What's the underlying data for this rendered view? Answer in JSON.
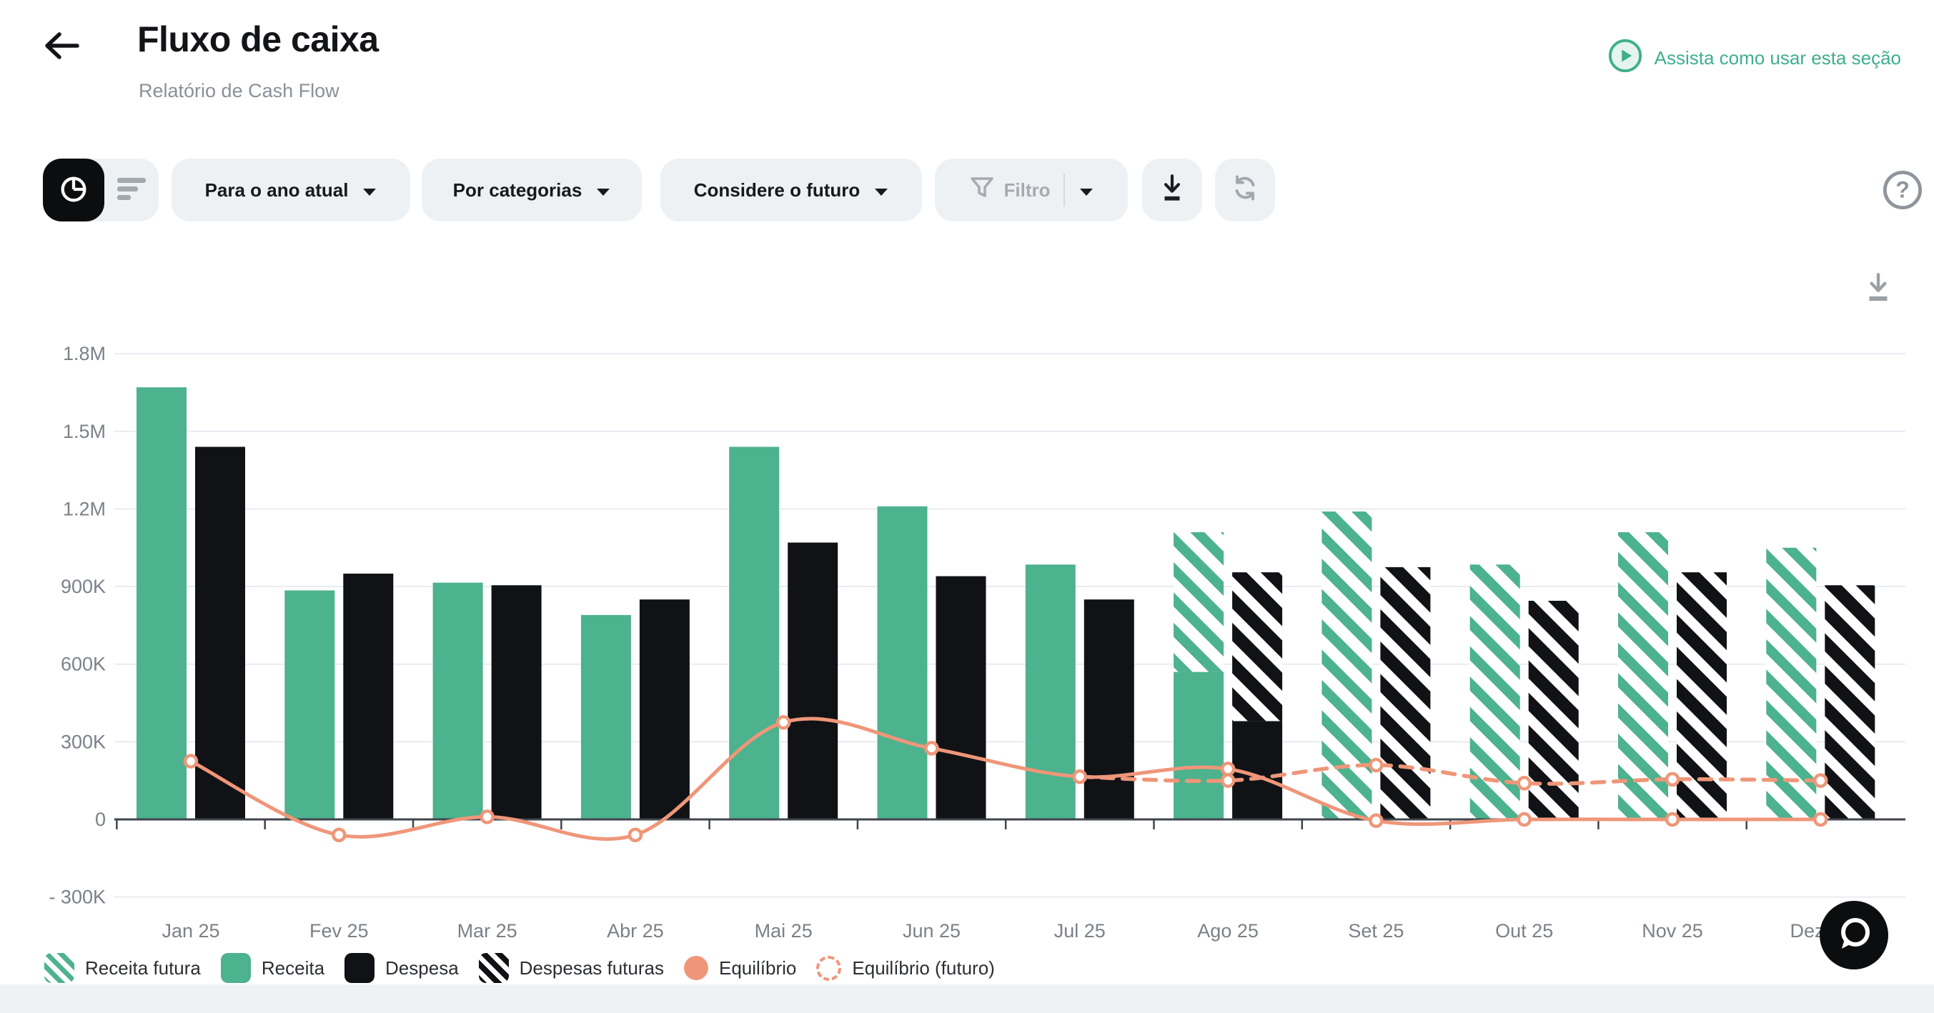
{
  "header": {
    "title": "Fluxo de caixa",
    "subtitle": "Relatório de Cash Flow",
    "watch_link": "Assista como usar esta seção"
  },
  "toolbar": {
    "period_label": "Para o ano atual",
    "category_label": "Por categorias",
    "future_label": "Considere o futuro",
    "filter_label": "Filtro"
  },
  "colors": {
    "revenue_green": "#4db28e",
    "expense_black": "#101215",
    "equilibrium_orange": "#ef9679",
    "link_green": "#3faf8c",
    "pill_gray": "#edf1f4",
    "grid_gray": "#e8ecf2"
  },
  "chart_data": {
    "type": "bar",
    "unit": "thousands of currency (K)",
    "categories": [
      "Jan 25",
      "Fev 25",
      "Mar 25",
      "Abr 25",
      "Mai 25",
      "Jun 25",
      "Jul 25",
      "Ago 25",
      "Set 25",
      "Out 25",
      "Nov 25",
      "Dez 25"
    ],
    "series": [
      {
        "name": "Receita",
        "type": "bar",
        "style": "solid",
        "color": "#4db28e",
        "values": [
          1670,
          885,
          915,
          790,
          1440,
          1210,
          985,
          570,
          0,
          0,
          0,
          0
        ]
      },
      {
        "name": "Receita futura",
        "type": "bar",
        "style": "hatched",
        "color": "#4db28e",
        "stacked_on": "Receita",
        "values": [
          0,
          0,
          0,
          0,
          0,
          0,
          0,
          540,
          1190,
          985,
          1110,
          1050
        ]
      },
      {
        "name": "Despesa",
        "type": "bar",
        "style": "solid",
        "color": "#101215",
        "values": [
          1440,
          950,
          905,
          850,
          1070,
          940,
          850,
          380,
          0,
          0,
          0,
          0
        ]
      },
      {
        "name": "Despesas futuras",
        "type": "bar",
        "style": "hatched",
        "color": "#101215",
        "stacked_on": "Despesa",
        "values": [
          0,
          0,
          0,
          0,
          0,
          0,
          0,
          575,
          975,
          845,
          955,
          905
        ]
      },
      {
        "name": "Equilíbrio",
        "type": "line",
        "style": "solid",
        "color": "#ef9679",
        "values": [
          225,
          -60,
          10,
          -60,
          375,
          275,
          165,
          195,
          -5,
          0,
          0,
          0
        ]
      },
      {
        "name": "Equilíbrio (futuro)",
        "type": "line",
        "style": "dashed",
        "color": "#ef9679",
        "values": [
          null,
          null,
          null,
          null,
          null,
          null,
          165,
          150,
          210,
          140,
          155,
          150
        ]
      }
    ],
    "y_ticks": [
      {
        "label": "1.8M",
        "value": 1800
      },
      {
        "label": "1.5M",
        "value": 1500
      },
      {
        "label": "1.2M",
        "value": 1200
      },
      {
        "label": "900K",
        "value": 900
      },
      {
        "label": "600K",
        "value": 600
      },
      {
        "label": "300K",
        "value": 300
      },
      {
        "label": "0",
        "value": 0
      },
      {
        "label": "- 300K",
        "value": -300
      }
    ],
    "ylim": [
      -300,
      1800
    ],
    "grid": true,
    "legend_position": "bottom",
    "legend": [
      {
        "label": "Receita futura",
        "swatch": "green-hatch"
      },
      {
        "label": "Receita",
        "swatch": "green-solid"
      },
      {
        "label": "Despesa",
        "swatch": "black-solid"
      },
      {
        "label": "Despesas futuras",
        "swatch": "black-hatch"
      },
      {
        "label": "Equilíbrio",
        "swatch": "orange-dot"
      },
      {
        "label": "Equilíbrio (futuro)",
        "swatch": "orange-dash"
      }
    ]
  }
}
